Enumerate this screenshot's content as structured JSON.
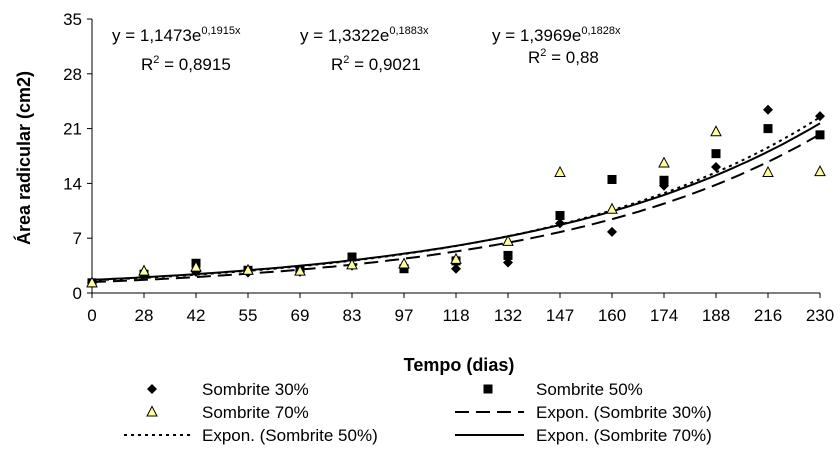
{
  "chart_data": {
    "type": "scatter",
    "title": "",
    "xlabel": "Tempo (dias)",
    "ylabel": "Área radicular (cm2)",
    "x_categories": [
      "0",
      "28",
      "42",
      "55",
      "69",
      "83",
      "97",
      "118",
      "132",
      "147",
      "160",
      "174",
      "188",
      "216",
      "230"
    ],
    "ylim": [
      0,
      35
    ],
    "yticks": [
      0,
      7,
      14,
      21,
      28,
      35
    ],
    "grid": false,
    "legend_position": "bottom",
    "series": [
      {
        "name": "Sombrite 30%",
        "marker": "diamond",
        "color": "#000000",
        "values": [
          1.3,
          2.4,
          2.7,
          2.6,
          2.7,
          3.5,
          3.5,
          3.1,
          3.9,
          8.9,
          7.8,
          13.7,
          16.1,
          23.4,
          22.6
        ]
      },
      {
        "name": "Sombrite 50%",
        "marker": "square",
        "color": "#000000",
        "values": [
          1.3,
          2.4,
          3.8,
          2.9,
          2.9,
          4.6,
          3.1,
          4.1,
          4.8,
          9.9,
          14.5,
          14.4,
          17.8,
          21.0,
          20.2
        ]
      },
      {
        "name": "Sombrite 70%",
        "marker": "triangle",
        "color": "#ffff99",
        "values": [
          1.3,
          2.8,
          3.3,
          2.9,
          2.8,
          3.6,
          3.7,
          4.3,
          6.6,
          15.4,
          10.7,
          16.6,
          20.6,
          15.4,
          15.5
        ]
      }
    ],
    "trendlines": [
      {
        "name": "Expon. (Sombrite 30%)",
        "a": 1.1473,
        "b": 0.1915,
        "style": "long-dash",
        "equation": "y = 1,1473e",
        "exponent": "0,1915x",
        "r2_label": "R",
        "r2_value": " = 0,8915"
      },
      {
        "name": "Expon. (Sombrite 50%)",
        "a": 1.3322,
        "b": 0.1883,
        "style": "dotted",
        "equation": "y = 1,3322e",
        "exponent": "0,1883x",
        "r2_label": "R",
        "r2_value": " = 0,9021"
      },
      {
        "name": "Expon. (Sombrite 70%)",
        "a": 1.3969,
        "b": 0.1828,
        "style": "solid",
        "equation": "y = 1,3969e",
        "exponent": "0,1828x",
        "r2_label": "R",
        "r2_value": " = 0,88"
      }
    ],
    "r2_superscript": "2"
  }
}
